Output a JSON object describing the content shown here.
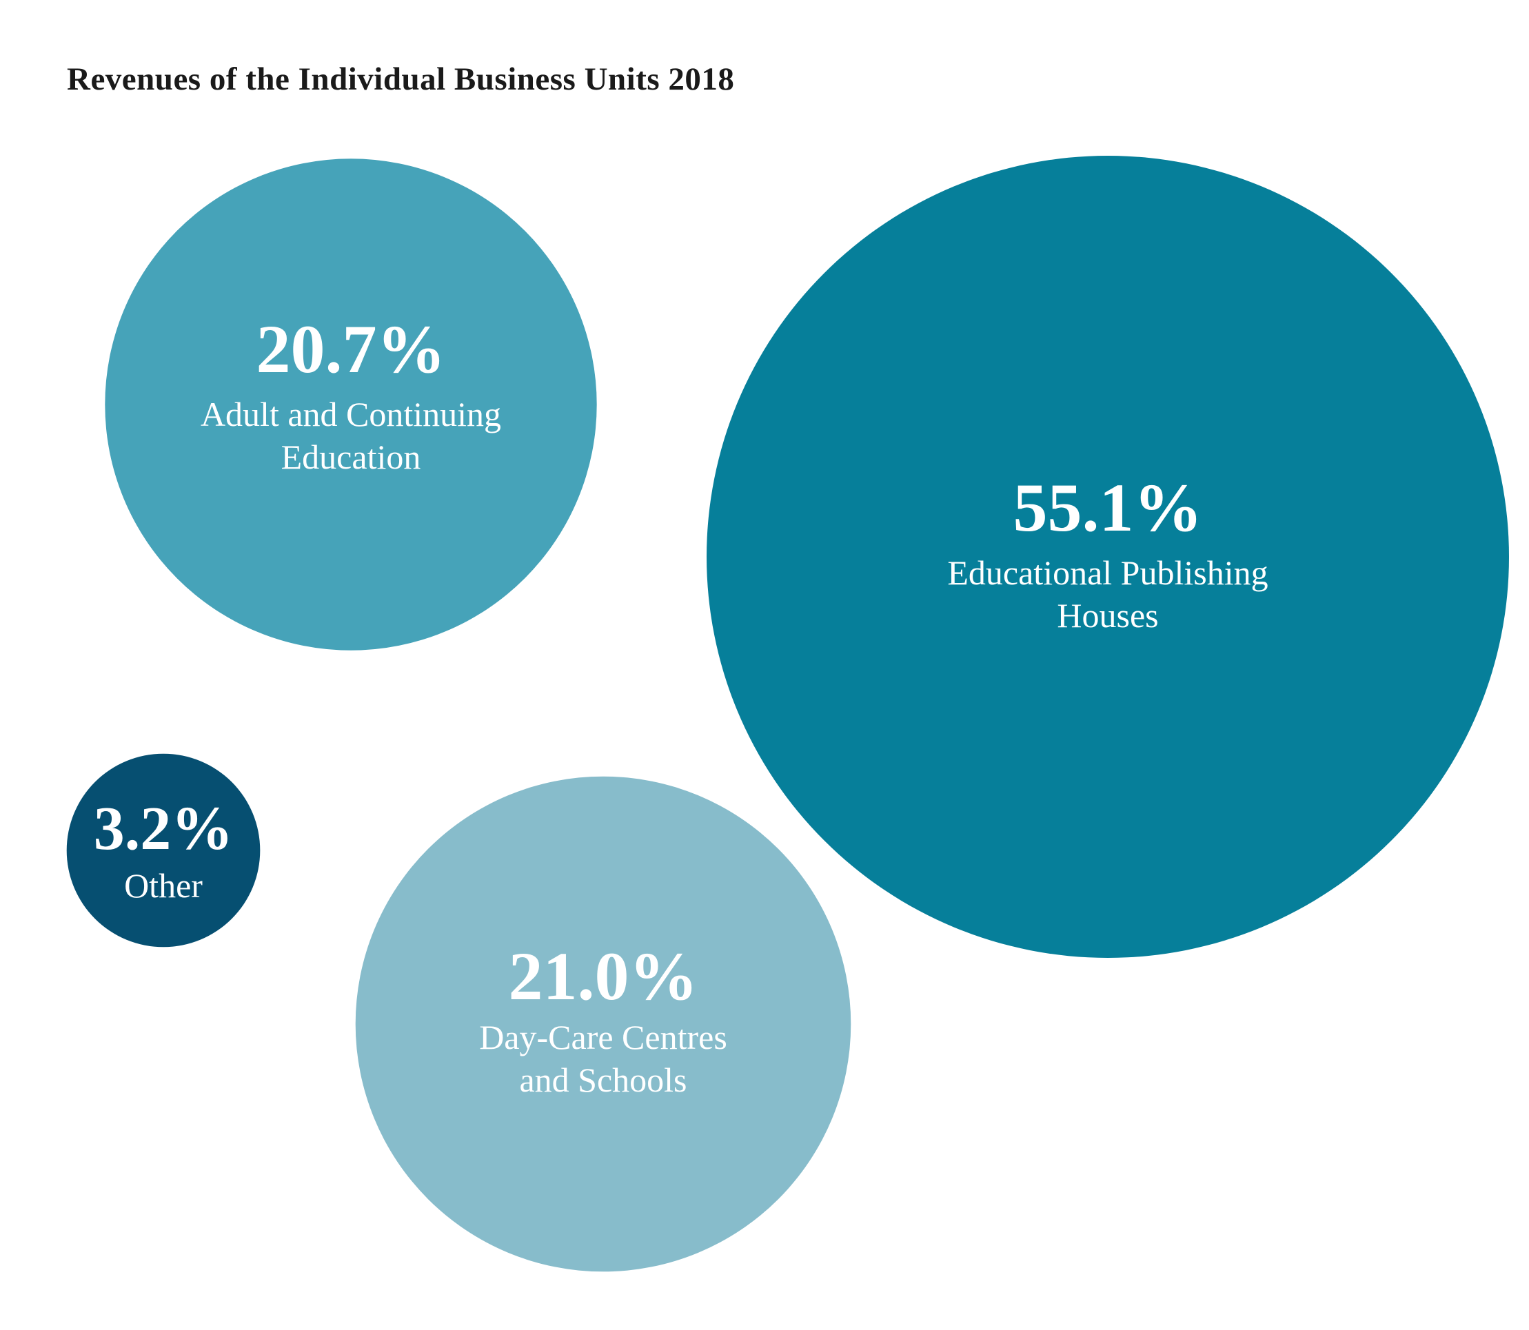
{
  "chart_data": {
    "type": "bubble",
    "title": "Revenues of the Individual Business Units 2018",
    "unit": "%",
    "series": [
      {
        "label": "20.7%",
        "value": 20.7,
        "name_lines": [
          "Adult and Continuing",
          "Education"
        ],
        "color": "#46a3b9"
      },
      {
        "label": "55.1%",
        "value": 55.1,
        "name_lines": [
          "Educational Publishing",
          "Houses"
        ],
        "color": "#067f9a"
      },
      {
        "label": "3.2%",
        "value": 3.2,
        "name_lines": [
          "Other"
        ],
        "color": "#064f71"
      },
      {
        "label": "21.0%",
        "value": 21.0,
        "name_lines": [
          "Day-Care Centres",
          "and Schools"
        ],
        "color": "#87bccb"
      }
    ]
  }
}
